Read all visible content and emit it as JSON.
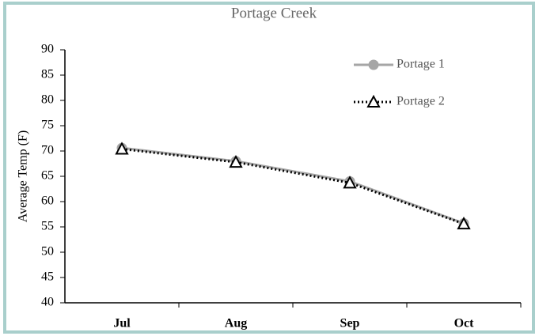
{
  "chart_data": {
    "type": "line",
    "title": "Portage Creek",
    "y_label": "Average Temp (F)",
    "categories": [
      "Jul",
      "Aug",
      "Sep",
      "Oct"
    ],
    "series": [
      {
        "name": "Portage 1",
        "color": "#a6a6a6",
        "marker": "circle",
        "dash": "solid",
        "values": [
          70.6,
          68.0,
          64.0,
          55.7
        ]
      },
      {
        "name": "Portage 2",
        "color": "#000000",
        "marker": "triangle",
        "dash": "dotted",
        "values": [
          70.4,
          67.8,
          63.7,
          55.6
        ]
      }
    ],
    "ylim": [
      40,
      90
    ],
    "yticks": [
      40,
      45,
      50,
      55,
      60,
      65,
      70,
      75,
      80,
      85,
      90
    ],
    "grid": false,
    "legend": "top-right"
  }
}
